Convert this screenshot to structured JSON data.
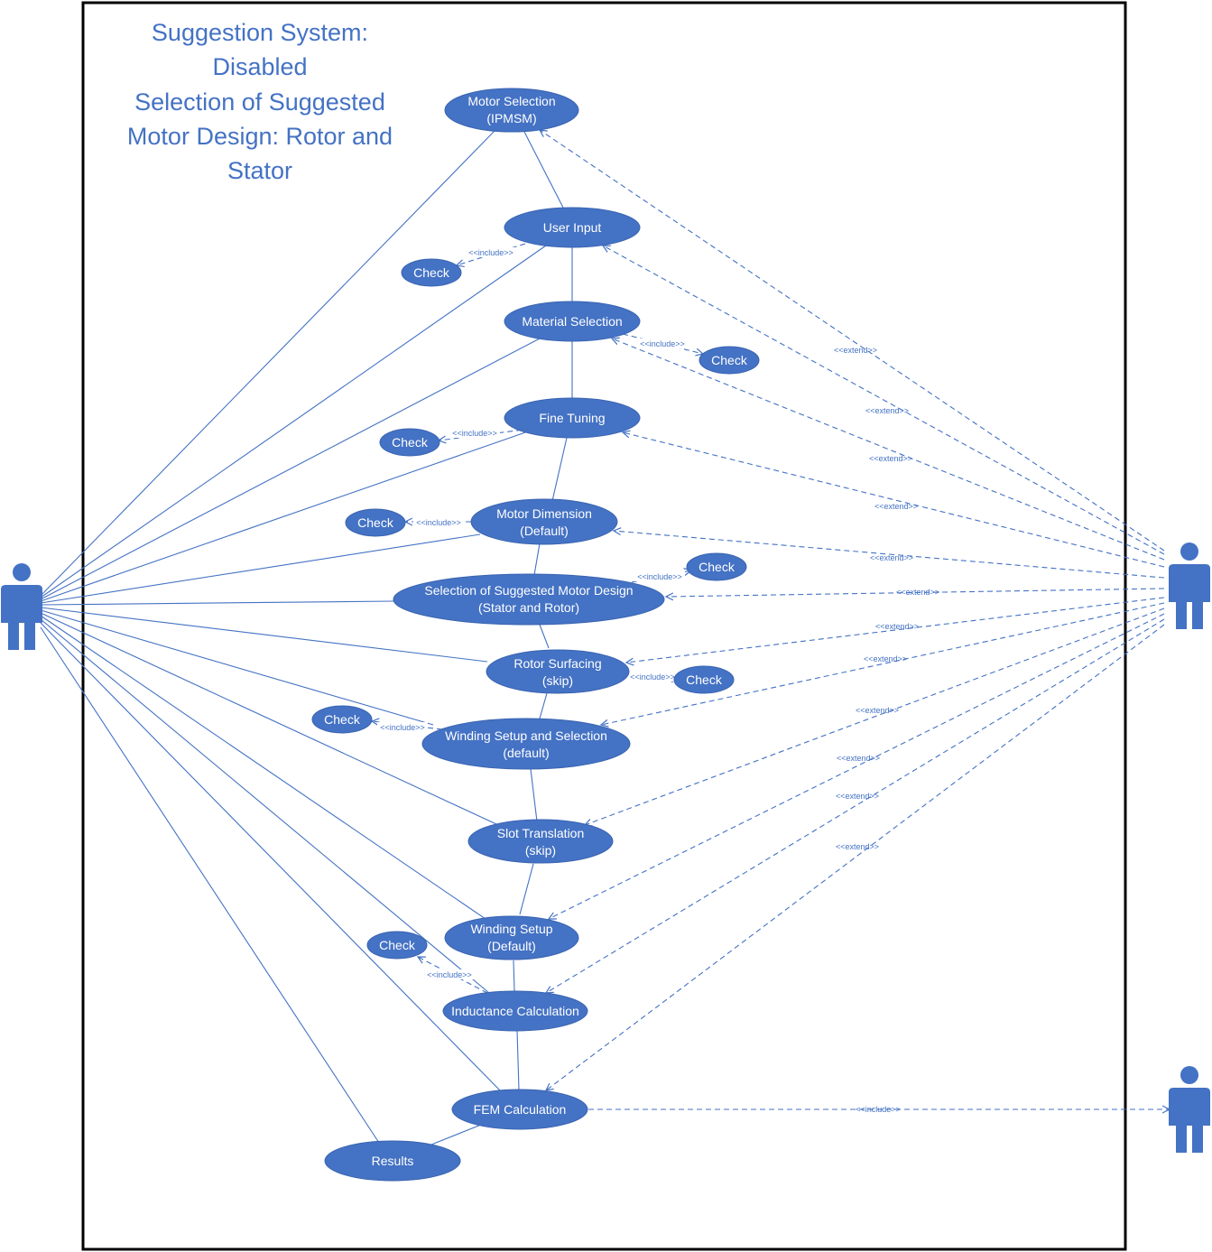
{
  "title": [
    "Suggestion System:",
    "Disabled",
    "Selection of Suggested",
    "Motor Design: Rotor and",
    "Stator"
  ],
  "colors": {
    "accent": "#4472c4",
    "border": "#000000",
    "background": "#ffffff"
  },
  "use_cases": {
    "motor_selection": [
      "Motor Selection",
      "(IPMSM)"
    ],
    "user_input": [
      "User Input"
    ],
    "material_selection": [
      "Material Selection"
    ],
    "fine_tuning": [
      "Fine Tuning"
    ],
    "motor_dimension": [
      "Motor Dimension",
      "(Default)"
    ],
    "suggested_design": [
      "Selection of Suggested Motor Design",
      "(Stator and Rotor)"
    ],
    "rotor_surfacing": [
      "Rotor Surfacing",
      "(skip)"
    ],
    "winding_setup_selection": [
      "Winding Setup and Selection",
      "(default)"
    ],
    "slot_translation": [
      "Slot Translation",
      "(skip)"
    ],
    "winding_setup": [
      "Winding Setup",
      "(Default)"
    ],
    "inductance_calculation": [
      "Inductance Calculation"
    ],
    "fem_calculation": [
      "FEM Calculation"
    ],
    "results": [
      "Results"
    ],
    "check_label": "Check"
  },
  "stereotypes": {
    "include": "<<include>>",
    "extend": "<<extend>>"
  },
  "actors": [
    "user-actor",
    "system-actor",
    "fem-actor"
  ]
}
